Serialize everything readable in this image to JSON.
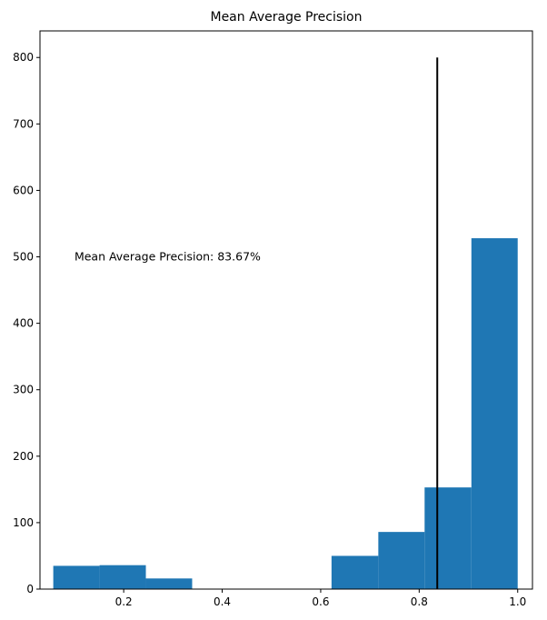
{
  "chart_data": {
    "type": "bar",
    "title": "Mean Average Precision",
    "xlabel": "",
    "ylabel": "",
    "xlim": [
      0.03,
      1.03
    ],
    "ylim": [
      0,
      840
    ],
    "xticks": [
      0.2,
      0.4,
      0.6,
      0.8,
      1.0
    ],
    "xtick_labels": [
      "0.2",
      "0.4",
      "0.6",
      "0.8",
      "1.0"
    ],
    "yticks": [
      0,
      100,
      200,
      300,
      400,
      500,
      600,
      700,
      800
    ],
    "ytick_labels": [
      "0",
      "100",
      "200",
      "300",
      "400",
      "500",
      "600",
      "700",
      "800"
    ],
    "bin_edges": [
      0.057,
      0.151,
      0.245,
      0.339,
      0.434,
      0.528,
      0.622,
      0.717,
      0.811,
      0.906,
      1.0
    ],
    "values": [
      35,
      36,
      16,
      0,
      0,
      0,
      50,
      86,
      153,
      528
    ],
    "bar_color": "#1f77b4",
    "grid": false,
    "vline": {
      "x": 0.8367,
      "ymin": 0,
      "ymax": 800,
      "color": "#000000"
    },
    "annotation": {
      "text": "Mean Average Precision: 83.67%",
      "x": 0.1,
      "y": 500
    }
  }
}
